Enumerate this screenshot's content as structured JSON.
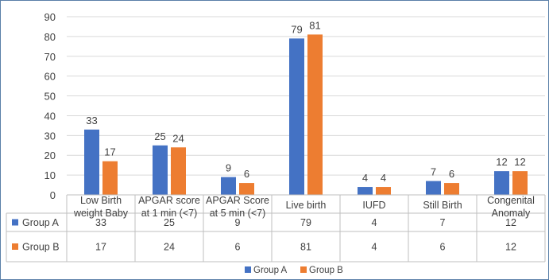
{
  "chart_data": {
    "type": "bar",
    "categories": [
      [
        "Low Birth",
        "weight Baby"
      ],
      [
        "APGAR score",
        "at 1 min (<7)"
      ],
      [
        "APGAR Score",
        "at 5 min (<7)"
      ],
      [
        "Live birth"
      ],
      [
        "IUFD"
      ],
      [
        "Still Birth"
      ],
      [
        "Congenital",
        "Anomaly"
      ]
    ],
    "series": [
      {
        "name": "Group A",
        "color": "#4472C4",
        "values": [
          33,
          25,
          9,
          79,
          4,
          7,
          12
        ]
      },
      {
        "name": "Group B",
        "color": "#ED7D31",
        "values": [
          17,
          24,
          6,
          81,
          4,
          6,
          12
        ]
      }
    ],
    "ylim": [
      0,
      90
    ],
    "yticks": [
      0,
      10,
      20,
      30,
      40,
      50,
      60,
      70,
      80,
      90
    ],
    "grid": true,
    "data_table": true,
    "legend_position": "bottom"
  }
}
